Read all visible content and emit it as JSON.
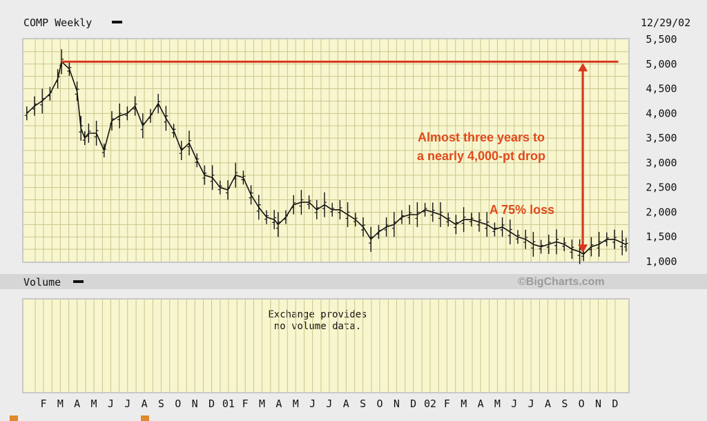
{
  "header": {
    "symbol_label": "COMP Weekly",
    "date": "12/29/02"
  },
  "volume_header": {
    "label": "Volume",
    "brand": "©BigCharts.com"
  },
  "volume_panel": {
    "line1": "Exchange provides",
    "line2": "no volume data."
  },
  "chart_data": {
    "type": "line",
    "title": "",
    "xlabel": "",
    "ylabel": "",
    "ylim": [
      1000,
      5500
    ],
    "y_ticks": [
      "5,500",
      "5,000",
      "4,500",
      "4,000",
      "3,500",
      "3,000",
      "2,500",
      "2,000",
      "1,500",
      "1,000"
    ],
    "x_ticks": [
      "F",
      "M",
      "A",
      "M",
      "J",
      "J",
      "A",
      "S",
      "O",
      "N",
      "D",
      "01",
      "F",
      "M",
      "A",
      "M",
      "J",
      "J",
      "A",
      "S",
      "O",
      "N",
      "D",
      "02",
      "F",
      "M",
      "A",
      "M",
      "J",
      "J",
      "A",
      "S",
      "O",
      "N",
      "D"
    ],
    "grid": true,
    "series": [
      {
        "name": "",
        "values": [
          {
            "x": "2000-01-07",
            "y": 4000
          },
          {
            "x": "2000-01-21",
            "y": 4150
          },
          {
            "x": "2000-02-04",
            "y": 4250
          },
          {
            "x": "2000-02-18",
            "y": 4400
          },
          {
            "x": "2000-03-03",
            "y": 4700
          },
          {
            "x": "2000-03-10",
            "y": 5048
          },
          {
            "x": "2000-03-24",
            "y": 4900
          },
          {
            "x": "2000-04-07",
            "y": 4450
          },
          {
            "x": "2000-04-14",
            "y": 3700
          },
          {
            "x": "2000-04-21",
            "y": 3500
          },
          {
            "x": "2000-04-28",
            "y": 3600
          },
          {
            "x": "2000-05-12",
            "y": 3600
          },
          {
            "x": "2000-05-26",
            "y": 3250
          },
          {
            "x": "2000-06-09",
            "y": 3850
          },
          {
            "x": "2000-06-23",
            "y": 3950
          },
          {
            "x": "2000-07-07",
            "y": 4000
          },
          {
            "x": "2000-07-21",
            "y": 4150
          },
          {
            "x": "2000-08-04",
            "y": 3750
          },
          {
            "x": "2000-08-18",
            "y": 3950
          },
          {
            "x": "2000-09-01",
            "y": 4200
          },
          {
            "x": "2000-09-15",
            "y": 3900
          },
          {
            "x": "2000-09-29",
            "y": 3650
          },
          {
            "x": "2000-10-13",
            "y": 3250
          },
          {
            "x": "2000-10-27",
            "y": 3400
          },
          {
            "x": "2000-11-10",
            "y": 3050
          },
          {
            "x": "2000-11-24",
            "y": 2750
          },
          {
            "x": "2000-12-08",
            "y": 2700
          },
          {
            "x": "2000-12-22",
            "y": 2500
          },
          {
            "x": "2001-01-05",
            "y": 2450
          },
          {
            "x": "2001-01-19",
            "y": 2750
          },
          {
            "x": "2001-02-02",
            "y": 2700
          },
          {
            "x": "2001-02-16",
            "y": 2350
          },
          {
            "x": "2001-03-02",
            "y": 2100
          },
          {
            "x": "2001-03-16",
            "y": 1900
          },
          {
            "x": "2001-03-30",
            "y": 1850
          },
          {
            "x": "2001-04-06",
            "y": 1750
          },
          {
            "x": "2001-04-20",
            "y": 1900
          },
          {
            "x": "2001-05-04",
            "y": 2150
          },
          {
            "x": "2001-05-18",
            "y": 2200
          },
          {
            "x": "2001-06-01",
            "y": 2200
          },
          {
            "x": "2001-06-15",
            "y": 2050
          },
          {
            "x": "2001-06-29",
            "y": 2150
          },
          {
            "x": "2001-07-13",
            "y": 2050
          },
          {
            "x": "2001-07-27",
            "y": 2050
          },
          {
            "x": "2001-08-10",
            "y": 1950
          },
          {
            "x": "2001-08-24",
            "y": 1850
          },
          {
            "x": "2001-09-07",
            "y": 1700
          },
          {
            "x": "2001-09-21",
            "y": 1450
          },
          {
            "x": "2001-10-05",
            "y": 1600
          },
          {
            "x": "2001-10-19",
            "y": 1700
          },
          {
            "x": "2001-11-02",
            "y": 1750
          },
          {
            "x": "2001-11-16",
            "y": 1900
          },
          {
            "x": "2001-11-30",
            "y": 1950
          },
          {
            "x": "2001-12-14",
            "y": 1950
          },
          {
            "x": "2001-12-28",
            "y": 2050
          },
          {
            "x": "2002-01-11",
            "y": 2000
          },
          {
            "x": "2002-01-25",
            "y": 1950
          },
          {
            "x": "2002-02-08",
            "y": 1850
          },
          {
            "x": "2002-02-22",
            "y": 1750
          },
          {
            "x": "2002-03-08",
            "y": 1850
          },
          {
            "x": "2002-03-22",
            "y": 1850
          },
          {
            "x": "2002-04-05",
            "y": 1800
          },
          {
            "x": "2002-04-19",
            "y": 1750
          },
          {
            "x": "2002-05-03",
            "y": 1650
          },
          {
            "x": "2002-05-17",
            "y": 1700
          },
          {
            "x": "2002-05-31",
            "y": 1600
          },
          {
            "x": "2002-06-14",
            "y": 1500
          },
          {
            "x": "2002-06-28",
            "y": 1450
          },
          {
            "x": "2002-07-12",
            "y": 1350
          },
          {
            "x": "2002-07-26",
            "y": 1300
          },
          {
            "x": "2002-08-09",
            "y": 1350
          },
          {
            "x": "2002-08-23",
            "y": 1400
          },
          {
            "x": "2002-09-06",
            "y": 1350
          },
          {
            "x": "2002-09-20",
            "y": 1250
          },
          {
            "x": "2002-10-04",
            "y": 1200
          },
          {
            "x": "2002-10-11",
            "y": 1150
          },
          {
            "x": "2002-10-25",
            "y": 1300
          },
          {
            "x": "2002-11-08",
            "y": 1350
          },
          {
            "x": "2002-11-22",
            "y": 1450
          },
          {
            "x": "2002-12-06",
            "y": 1450
          },
          {
            "x": "2002-12-20",
            "y": 1380
          },
          {
            "x": "2002-12-27",
            "y": 1340
          }
        ]
      }
    ],
    "reference_line": {
      "y": 5048,
      "from": "2000-03-10",
      "to": "2002-12-13",
      "color": "#d9381e"
    },
    "arrow": {
      "x": "2002-10-11",
      "y_from": 5048,
      "y_to": 1150,
      "color": "#d9381e"
    },
    "annotations": [
      "Almost three years to",
      "a nearly 4,000-pt drop",
      "A 75% loss"
    ],
    "colors": {
      "price": "#111111",
      "accent": "#d9381e",
      "panel": "#f8f6cf",
      "grid": "#c9c58a"
    }
  }
}
